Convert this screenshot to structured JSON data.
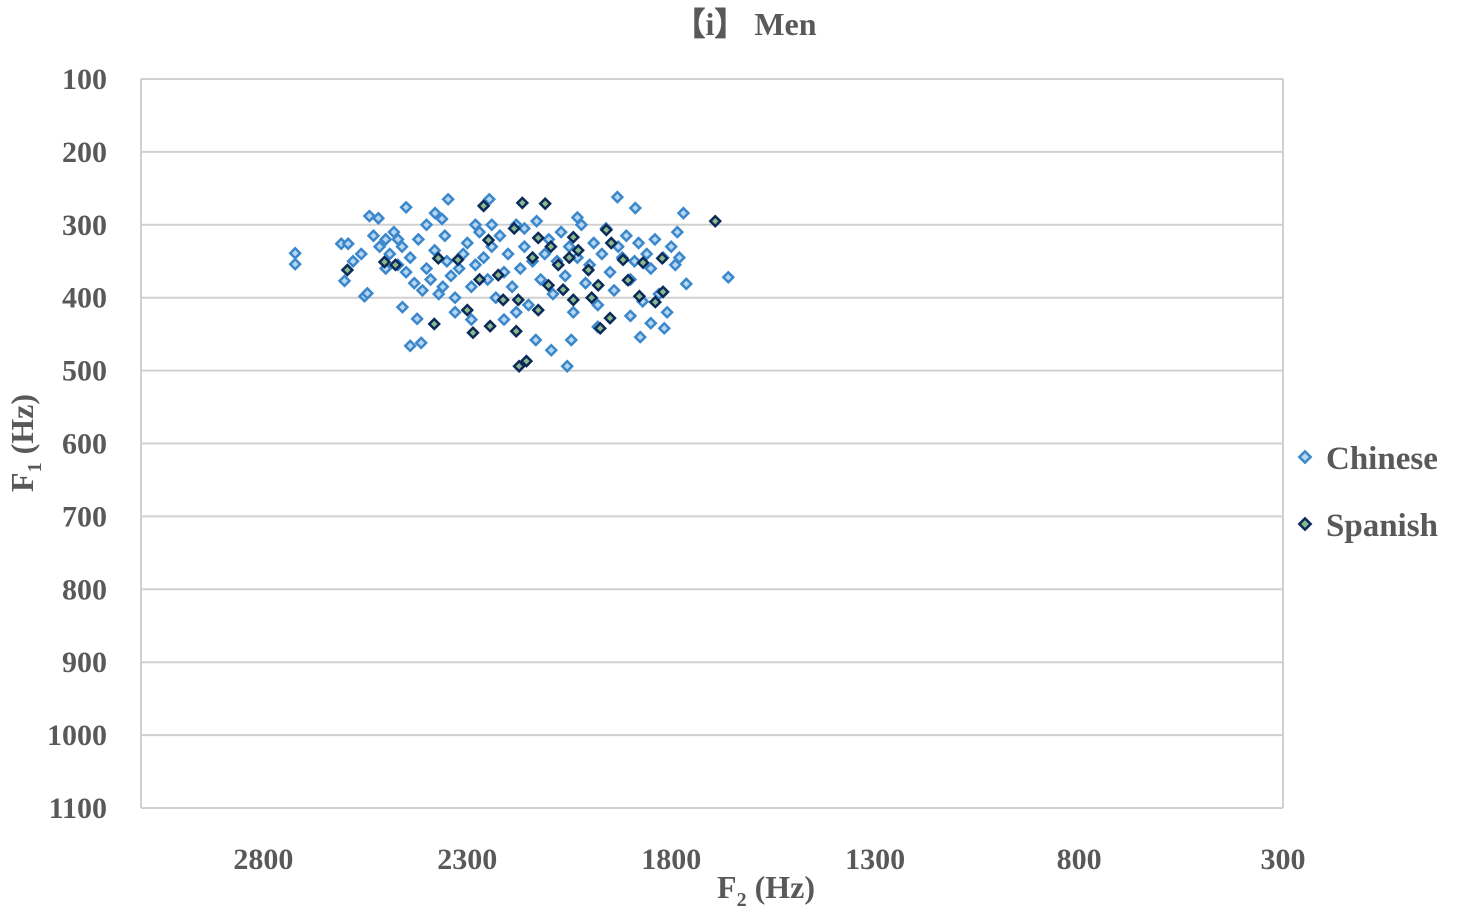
{
  "chart_data": {
    "type": "scatter",
    "title": "【i】 Men",
    "xlabel": {
      "main": "F",
      "sub": "2",
      "unit": " (Hz)"
    },
    "ylabel": {
      "main": "F",
      "sub": "1",
      "unit": " (Hz)"
    },
    "xlim": [
      300,
      3100
    ],
    "x_reversed": true,
    "ylim": [
      100,
      1100
    ],
    "y_reversed": true,
    "x_ticks": [
      "2800",
      "2300",
      "1800",
      "1300",
      "800",
      "300"
    ],
    "y_ticks": [
      "100",
      "200",
      "300",
      "400",
      "500",
      "600",
      "700",
      "800",
      "900",
      "1000",
      "1100"
    ],
    "grid": "horizontal",
    "legend_position": "right",
    "series": [
      {
        "name": "Chinese",
        "stroke": "#3b87cc",
        "fill": "#b7d6f0",
        "points": [
          [
            2722,
            339
          ],
          [
            2722,
            354
          ],
          [
            2609,
            326
          ],
          [
            2592,
            326
          ],
          [
            2601,
            377
          ],
          [
            2552,
            398
          ],
          [
            2545,
            394
          ],
          [
            2540,
            288
          ],
          [
            2518,
            291
          ],
          [
            2450,
            276
          ],
          [
            2347,
            265
          ],
          [
            2379,
            284
          ],
          [
            2362,
            292
          ],
          [
            2246,
            265
          ],
          [
            1932,
            262
          ],
          [
            1888,
            277
          ],
          [
            1770,
            284
          ],
          [
            1660,
            372
          ],
          [
            1763,
            381
          ],
          [
            2440,
            466
          ],
          [
            2413,
            462
          ],
          [
            2423,
            429
          ],
          [
            2459,
            413
          ],
          [
            2055,
            494
          ],
          [
            2094,
            472
          ],
          [
            2132,
            458
          ],
          [
            2045,
            458
          ],
          [
            1817,
            442
          ],
          [
            1876,
            454
          ],
          [
            2530,
            315
          ],
          [
            2515,
            330
          ],
          [
            2500,
            320
          ],
          [
            2490,
            340
          ],
          [
            2480,
            310
          ],
          [
            2470,
            355
          ],
          [
            2460,
            330
          ],
          [
            2450,
            365
          ],
          [
            2440,
            345
          ],
          [
            2430,
            380
          ],
          [
            2420,
            320
          ],
          [
            2410,
            390
          ],
          [
            2400,
            360
          ],
          [
            2390,
            375
          ],
          [
            2380,
            335
          ],
          [
            2370,
            395
          ],
          [
            2360,
            385
          ],
          [
            2350,
            350
          ],
          [
            2340,
            370
          ],
          [
            2330,
            400
          ],
          [
            2320,
            360
          ],
          [
            2310,
            340
          ],
          [
            2300,
            325
          ],
          [
            2290,
            385
          ],
          [
            2280,
            355
          ],
          [
            2270,
            310
          ],
          [
            2260,
            345
          ],
          [
            2250,
            375
          ],
          [
            2240,
            330
          ],
          [
            2230,
            400
          ],
          [
            2220,
            315
          ],
          [
            2210,
            365
          ],
          [
            2200,
            340
          ],
          [
            2190,
            385
          ],
          [
            2180,
            300
          ],
          [
            2170,
            360
          ],
          [
            2160,
            330
          ],
          [
            2150,
            410
          ],
          [
            2140,
            350
          ],
          [
            2130,
            295
          ],
          [
            2120,
            375
          ],
          [
            2110,
            340
          ],
          [
            2100,
            320
          ],
          [
            2090,
            395
          ],
          [
            2080,
            350
          ],
          [
            2070,
            310
          ],
          [
            2060,
            370
          ],
          [
            2050,
            330
          ],
          [
            2040,
            420
          ],
          [
            2030,
            345
          ],
          [
            2020,
            300
          ],
          [
            2010,
            380
          ],
          [
            2000,
            355
          ],
          [
            1990,
            325
          ],
          [
            1980,
            410
          ],
          [
            1970,
            340
          ],
          [
            1960,
            305
          ],
          [
            1950,
            365
          ],
          [
            1940,
            390
          ],
          [
            1930,
            330
          ],
          [
            1920,
            345
          ],
          [
            1910,
            315
          ],
          [
            1900,
            375
          ],
          [
            1890,
            350
          ],
          [
            1880,
            325
          ],
          [
            1870,
            405
          ],
          [
            1860,
            340
          ],
          [
            1850,
            360
          ],
          [
            1840,
            320
          ],
          [
            1830,
            395
          ],
          [
            1820,
            345
          ],
          [
            1800,
            330
          ],
          [
            1790,
            355
          ],
          [
            1780,
            345
          ],
          [
            1785,
            310
          ],
          [
            1810,
            420
          ],
          [
            1850,
            435
          ],
          [
            1900,
            425
          ],
          [
            1980,
            440
          ],
          [
            2210,
            430
          ],
          [
            2290,
            430
          ],
          [
            2330,
            420
          ],
          [
            2180,
            420
          ],
          [
            2240,
            300
          ],
          [
            2280,
            300
          ],
          [
            2160,
            305
          ],
          [
            2400,
            300
          ],
          [
            2500,
            360
          ],
          [
            2560,
            340
          ],
          [
            2580,
            350
          ],
          [
            2470,
            320
          ],
          [
            2355,
            315
          ],
          [
            2030,
            290
          ]
        ]
      },
      {
        "name": "Spanish",
        "stroke": "#0b2a5c",
        "fill": "#8cb98a",
        "points": [
          [
            1692,
            295
          ],
          [
            2594,
            362
          ],
          [
            2260,
            274
          ],
          [
            2165,
            270
          ],
          [
            2109,
            271
          ],
          [
            2173,
            494
          ],
          [
            2155,
            487
          ],
          [
            2381,
            436
          ],
          [
            2286,
            448
          ],
          [
            2244,
            439
          ],
          [
            2180,
            446
          ],
          [
            1974,
            442
          ],
          [
            1820,
            392
          ],
          [
            1839,
            406
          ],
          [
            1878,
            398
          ],
          [
            1950,
            428
          ],
          [
            1959,
            307
          ],
          [
            1822,
            346
          ],
          [
            1947,
            325
          ],
          [
            2040,
            317
          ],
          [
            2126,
            318
          ],
          [
            2185,
            305
          ],
          [
            2503,
            351
          ],
          [
            2476,
            355
          ],
          [
            2371,
            346
          ],
          [
            2300,
            417
          ],
          [
            2323,
            348
          ],
          [
            2224,
            369
          ],
          [
            2175,
            403
          ],
          [
            2126,
            417
          ],
          [
            2065,
            389
          ],
          [
            2003,
            362
          ],
          [
            2077,
            355
          ],
          [
            2028,
            335
          ],
          [
            1979,
            383
          ],
          [
            1906,
            376
          ],
          [
            1869,
            352
          ],
          [
            2248,
            321
          ],
          [
            2212,
            403
          ],
          [
            2101,
            383
          ],
          [
            2040,
            403
          ],
          [
            1918,
            348
          ],
          [
            2270,
            375
          ],
          [
            2140,
            345
          ],
          [
            2050,
            345
          ],
          [
            2095,
            330
          ],
          [
            1995,
            400
          ]
        ]
      }
    ]
  }
}
